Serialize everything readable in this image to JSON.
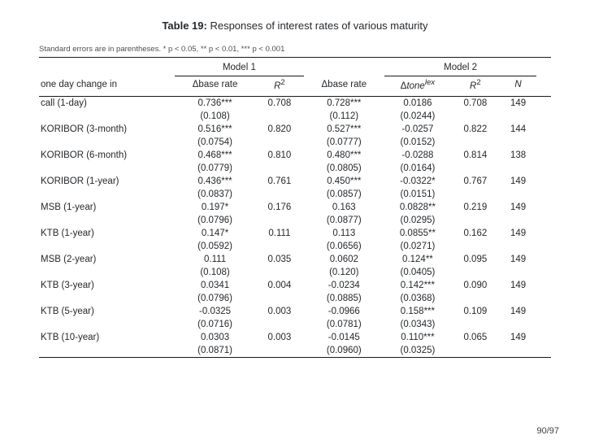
{
  "title_prefix": "Table 19:",
  "title_rest": " Responses of interest rates of various maturity",
  "footnote": "Standard errors are in parentheses. * p < 0.05, ** p < 0.01, *** p < 0.001",
  "header": {
    "model1": "Model 1",
    "model2": "Model 2",
    "row_label": "one day change in",
    "dbase": "base rate",
    "r2": "R",
    "r2_sup": "2",
    "dtone": "tone",
    "dtone_sup": "lex",
    "n": "N"
  },
  "rows": [
    {
      "label": "call (1-day)",
      "m1_b": "0.736***",
      "m1_se": "(0.108)",
      "m1_r2": "0.708",
      "m2_b": "0.728***",
      "m2_se": "(0.112)",
      "m2_t": "0.0186",
      "m2_tse": "(0.0244)",
      "m2_r2": "0.708",
      "n": "149"
    },
    {
      "label": "KORIBOR (3-month)",
      "m1_b": "0.516***",
      "m1_se": "(0.0754)",
      "m1_r2": "0.820",
      "m2_b": "0.527***",
      "m2_se": "(0.0777)",
      "m2_t": "-0.0257",
      "m2_tse": "(0.0152)",
      "m2_r2": "0.822",
      "n": "144"
    },
    {
      "label": "KORIBOR (6-month)",
      "m1_b": "0.468***",
      "m1_se": "(0.0779)",
      "m1_r2": "0.810",
      "m2_b": "0.480***",
      "m2_se": "(0.0805)",
      "m2_t": "-0.0288",
      "m2_tse": "(0.0164)",
      "m2_r2": "0.814",
      "n": "138"
    },
    {
      "label": "KORIBOR (1-year)",
      "m1_b": "0.436***",
      "m1_se": "(0.0837)",
      "m1_r2": "0.761",
      "m2_b": "0.450***",
      "m2_se": "(0.0857)",
      "m2_t": "-0.0322*",
      "m2_tse": "(0.0151)",
      "m2_r2": "0.767",
      "n": "149"
    },
    {
      "label": "MSB (1-year)",
      "m1_b": "0.197*",
      "m1_se": "(0.0796)",
      "m1_r2": "0.176",
      "m2_b": "0.163",
      "m2_se": "(0.0877)",
      "m2_t": "0.0828**",
      "m2_tse": "(0.0295)",
      "m2_r2": "0.219",
      "n": "149"
    },
    {
      "label": "KTB (1-year)",
      "m1_b": "0.147*",
      "m1_se": "(0.0592)",
      "m1_r2": "0.111",
      "m2_b": "0.113",
      "m2_se": "(0.0656)",
      "m2_t": "0.0855**",
      "m2_tse": "(0.0271)",
      "m2_r2": "0.162",
      "n": "149"
    },
    {
      "label": "MSB (2-year)",
      "m1_b": "0.111",
      "m1_se": "(0.108)",
      "m1_r2": "0.035",
      "m2_b": "0.0602",
      "m2_se": "(0.120)",
      "m2_t": "0.124**",
      "m2_tse": "(0.0405)",
      "m2_r2": "0.095",
      "n": "149"
    },
    {
      "label": "KTB (3-year)",
      "m1_b": "0.0341",
      "m1_se": "(0.0796)",
      "m1_r2": "0.004",
      "m2_b": "-0.0234",
      "m2_se": "(0.0885)",
      "m2_t": "0.142***",
      "m2_tse": "(0.0368)",
      "m2_r2": "0.090",
      "n": "149"
    },
    {
      "label": "KTB (5-year)",
      "m1_b": "-0.0325",
      "m1_se": "(0.0716)",
      "m1_r2": "0.003",
      "m2_b": "-0.0966",
      "m2_se": "(0.0781)",
      "m2_t": "0.158***",
      "m2_tse": "(0.0343)",
      "m2_r2": "0.109",
      "n": "149"
    },
    {
      "label": "KTB (10-year)",
      "m1_b": "0.0303",
      "m1_se": "(0.0871)",
      "m1_r2": "0.003",
      "m2_b": "-0.0145",
      "m2_se": "(0.0960)",
      "m2_t": "0.110***",
      "m2_tse": "(0.0325)",
      "m2_r2": "0.065",
      "n": "149"
    }
  ],
  "page": "90/97"
}
